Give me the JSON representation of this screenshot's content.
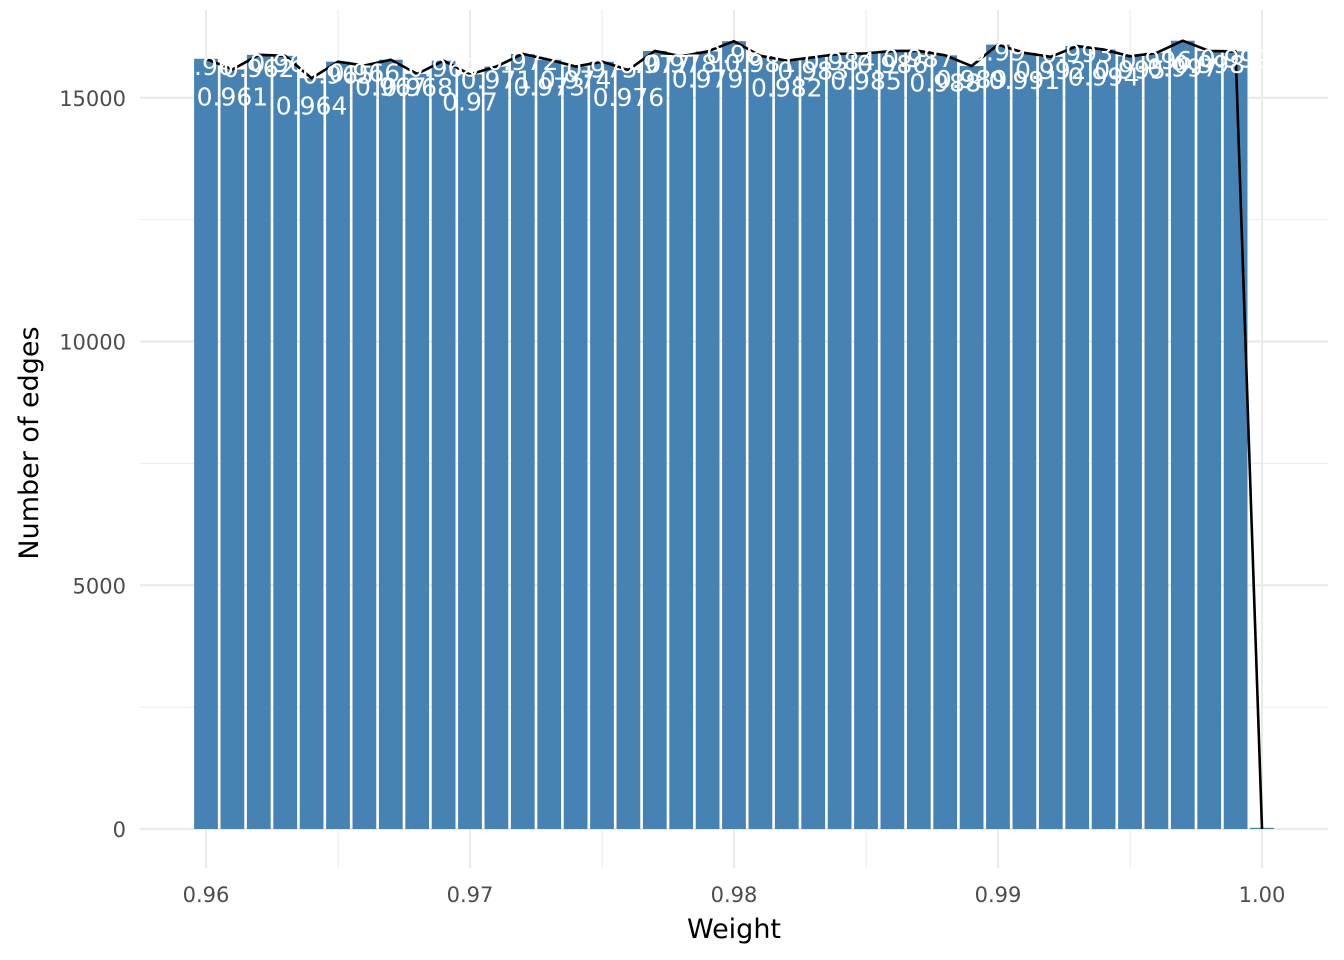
{
  "chart_data": {
    "type": "bar",
    "title": "",
    "xlabel": "Weight",
    "ylabel": "Number of edges",
    "xlim": [
      0.9575,
      1.0025
    ],
    "ylim": [
      -800,
      16800
    ],
    "x_ticks": [
      "0.96",
      "0.97",
      "0.98",
      "0.99",
      "1.00"
    ],
    "y_ticks": [
      "0",
      "5000",
      "10000",
      "15000"
    ],
    "grid": true,
    "legend": "none",
    "colors": {
      "bar": "#4682b4",
      "line": "#000000",
      "grid": "#ebebeb",
      "label": "#ffffff"
    },
    "x": [
      0.96,
      0.961,
      0.962,
      0.963,
      0.964,
      0.965,
      0.966,
      0.967,
      0.968,
      0.969,
      0.97,
      0.971,
      0.972,
      0.973,
      0.974,
      0.975,
      0.976,
      0.977,
      0.978,
      0.979,
      0.98,
      0.981,
      0.982,
      0.983,
      0.984,
      0.985,
      0.986,
      0.987,
      0.988,
      0.989,
      0.99,
      0.991,
      0.992,
      0.993,
      0.994,
      0.995,
      0.996,
      0.997,
      0.998,
      0.999,
      1.0
    ],
    "values": [
      15800,
      15580,
      15880,
      15860,
      15400,
      15740,
      15660,
      15780,
      15490,
      15760,
      15480,
      15640,
      15900,
      15780,
      15640,
      15740,
      15570,
      15960,
      15850,
      15950,
      16160,
      15860,
      15760,
      15830,
      15900,
      15910,
      15960,
      15960,
      15870,
      15650,
      16090,
      15920,
      15840,
      16060,
      15990,
      15850,
      15920,
      16170,
      15960,
      15950,
      0
    ],
    "bar_labels": [
      "0.96",
      "0.961",
      "0.962",
      "0.963",
      "0.964",
      "0.965",
      "0.966",
      "0.967",
      "0.968",
      "0.969",
      "0.97",
      "0.971",
      "0.972",
      "0.973",
      "0.974",
      "0.975",
      "0.976",
      "0.977",
      "0.978",
      "0.979",
      "0.98",
      "0.981",
      "0.982",
      "0.983",
      "0.984",
      "0.985",
      "0.986",
      "0.987",
      "0.988",
      "0.989",
      "0.99",
      "0.991",
      "0.992",
      "0.993",
      "0.994",
      "0.995",
      "0.996",
      "0.997",
      "0.998",
      "0.999",
      ""
    ]
  }
}
